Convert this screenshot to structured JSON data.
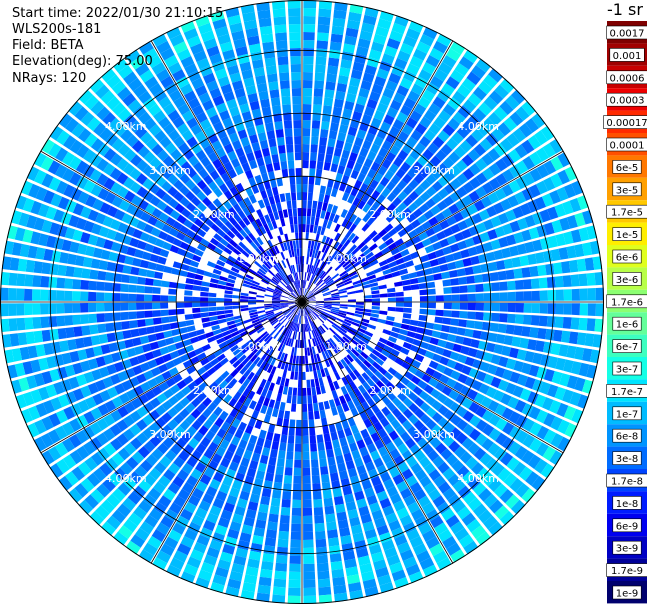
{
  "header": {
    "start_time": "Start time: 2022/01/30 21:10:15",
    "instrument": "WLS200s-181",
    "field": "Field: BETA",
    "elevation": "Elevation(deg): 75.00",
    "nrays": "NRays: 120"
  },
  "colorbar": {
    "unit_label": "-1 sr",
    "labels": [
      "0.0017",
      "0.001",
      "0.0006",
      "0.0003",
      "0.00017",
      "0.0001",
      "6e-5",
      "3e-5",
      "1.7e-5",
      "1e-5",
      "6e-6",
      "3e-6",
      "1.7e-6",
      "1e-6",
      "6e-7",
      "3e-7",
      "1.7e-7",
      "1e-7",
      "6e-8",
      "3e-8",
      "1.7e-8",
      "1e-8",
      "6e-9",
      "3e-9",
      "1.7e-9",
      "1e-9"
    ],
    "colors": [
      "#7f0000",
      "#a00000",
      "#c80000",
      "#ee0000",
      "#ff2a00",
      "#ff5000",
      "#ff7800",
      "#ffa000",
      "#ffc800",
      "#ffee00",
      "#e0ff1e",
      "#b8ff48",
      "#8cff72",
      "#64ff9a",
      "#3cffc0",
      "#14ffe6",
      "#00e4ff",
      "#00bcff",
      "#0094ff",
      "#006cff",
      "#0044ff",
      "#001cff",
      "#0000f0",
      "#0000c4",
      "#000098",
      "#00006e"
    ]
  },
  "chart_data": {
    "type": "heatmap",
    "projection": "polar PPI (plan position indicator)",
    "field": "BETA",
    "elevation_deg": 75.0,
    "n_rays": 120,
    "range_rings_km": [
      1.0,
      2.0,
      3.0,
      4.0
    ],
    "ring_labels": [
      "1.00km",
      "2.00km",
      "3.00km",
      "4.00km"
    ],
    "max_range_km": 4.8,
    "value_range_sr": [
      1e-09,
      0.0017
    ],
    "dominant_values": "approx 1e-8 to 1e-7 sr^-1 throughout, blue near centre, cyan toward edge",
    "grid": true
  }
}
